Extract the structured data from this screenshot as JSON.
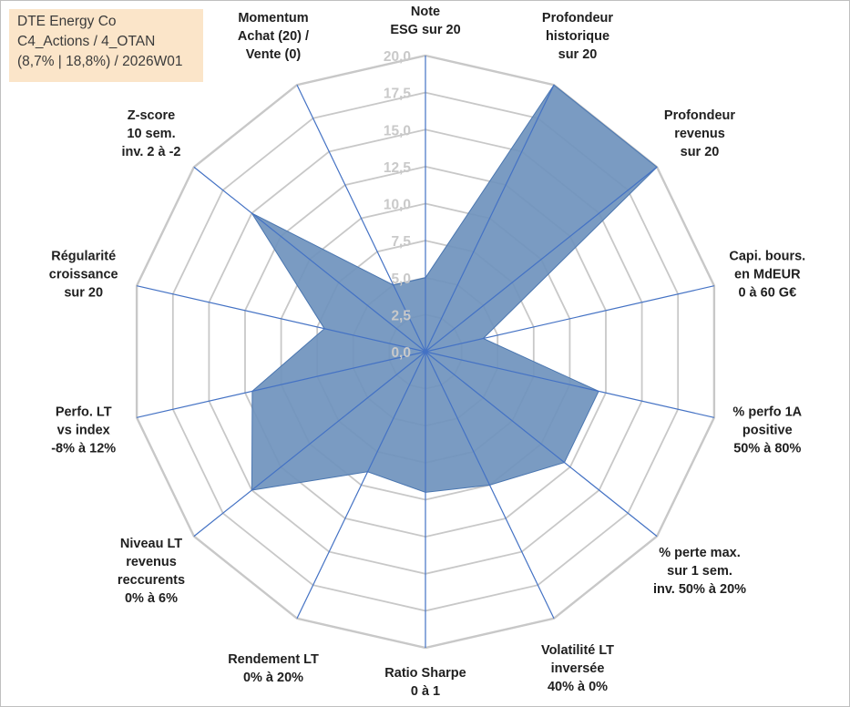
{
  "title_box": {
    "line1": "DTE Energy Co",
    "line2": "C4_Actions / 4_OTAN",
    "line3": "(8,7% | 18,8%) / 2026W01"
  },
  "chart_data": {
    "type": "radar",
    "title": "DTE Energy Co",
    "range": [
      0,
      20
    ],
    "ticks": [
      "0,0",
      "2,5",
      "5,0",
      "7,5",
      "10,0",
      "12,5",
      "15,0",
      "17,5",
      "20,0"
    ],
    "axes": [
      {
        "label": [
          "Note",
          "ESG sur 20"
        ],
        "value": 5.0
      },
      {
        "label": [
          "Profondeur",
          "historique",
          "sur 20"
        ],
        "value": 20.0
      },
      {
        "label": [
          "Profondeur",
          "revenus",
          "sur 20"
        ],
        "value": 20.0
      },
      {
        "label": [
          "Capi. bours.",
          "en MdEUR",
          "0 à 60 G€"
        ],
        "value": 4.0
      },
      {
        "label": [
          "% perfo 1A",
          "positive",
          "50% à 80%"
        ],
        "value": 12.0
      },
      {
        "label": [
          "% perte max.",
          "sur 1 sem.",
          "inv. 50% à 20%"
        ],
        "value": 12.0
      },
      {
        "label": [
          "Volatilité LT",
          "inversée",
          "40% à 0%"
        ],
        "value": 10.0
      },
      {
        "label": [
          "Ratio Sharpe",
          "0 à 1"
        ],
        "value": 9.5
      },
      {
        "label": [
          "Rendement LT",
          "0% à 20%"
        ],
        "value": 9.0
      },
      {
        "label": [
          "Niveau LT",
          "revenus",
          "reccurents",
          "0% à 6%"
        ],
        "value": 15.0
      },
      {
        "label": [
          "Perfo. LT",
          "vs index",
          "-8% à 12%"
        ],
        "value": 12.0
      },
      {
        "label": [
          "Régularité",
          "croissance",
          "sur 20"
        ],
        "value": 7.0
      },
      {
        "label": [
          "Z-score",
          "10 sem.",
          "inv. 2 à -2"
        ],
        "value": 15.0
      },
      {
        "label": [
          "Momentum",
          "Achat (20) /",
          "Vente (0)"
        ],
        "value": 5.0
      }
    ],
    "series": [
      {
        "name": "DTE Energy Co",
        "color": "#4a76b0",
        "fill": "#6f92bd",
        "line": "#4472c4"
      }
    ],
    "grid_color": "#c8c8c8",
    "spoke_color": "#4472c4"
  }
}
